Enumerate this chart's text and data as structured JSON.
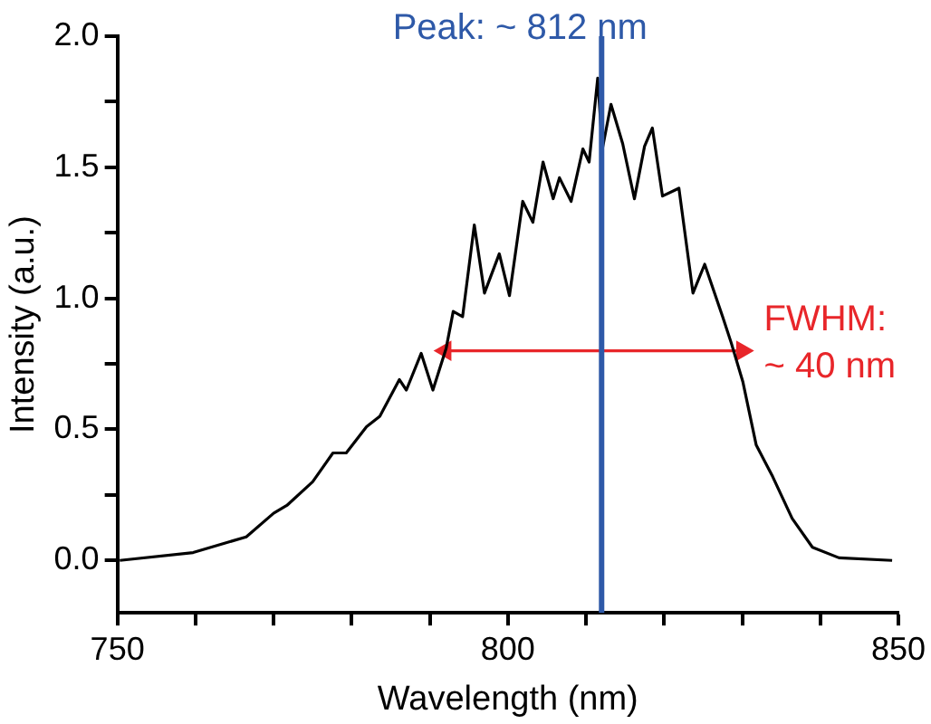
{
  "chart_data": {
    "type": "line",
    "xlabel": "Wavelength (nm)",
    "ylabel": "Intensity (a.u.)",
    "xlim": [
      750,
      850
    ],
    "xticks": [
      750,
      {
        "value": 760,
        "label": null
      },
      {
        "value": 770,
        "label": null
      },
      {
        "value": 780,
        "label": null
      },
      {
        "value": 790,
        "label": null
      },
      800,
      {
        "value": 810,
        "label": null
      },
      {
        "value": 820,
        "label": null
      },
      {
        "value": 830,
        "label": null
      },
      {
        "value": 840,
        "label": null
      },
      850
    ],
    "ylim": [
      -0.2,
      2.0
    ],
    "yticks": [
      {
        "value": 0,
        "label": "0.0"
      },
      {
        "value": 0.25,
        "label": null
      },
      {
        "value": 0.5,
        "label": "0.5"
      },
      {
        "value": 0.75,
        "label": null
      },
      {
        "value": 1,
        "label": "1.0"
      },
      {
        "value": 1.25,
        "label": null
      },
      {
        "value": 1.5,
        "label": "1.5"
      },
      {
        "value": 1.75,
        "label": null
      },
      {
        "value": 2,
        "label": "2.0"
      }
    ],
    "grid": false,
    "legend": false,
    "marker": "none",
    "line_style": "solid",
    "series": [
      {
        "color": "#000000",
        "x": [
          750.3,
          759.7,
          766.5,
          770,
          771.7,
          775,
          777.6,
          779.3,
          781.9,
          783.6,
          786.1,
          787,
          788.9,
          790.4,
          792.1,
          793,
          794.2,
          795.7,
          797,
          798.9,
          800.2,
          801.9,
          803.2,
          804.5,
          805.8,
          806.6,
          808.1,
          809.6,
          810.4,
          811.5,
          812.1,
          813.2,
          814.7,
          816.2,
          817.5,
          818.5,
          819.8,
          821.9,
          823.7,
          825.2,
          827.5,
          828.6,
          830.1,
          831.8,
          833.9,
          836.4,
          839,
          842.4,
          849.2
        ],
        "values": [
          0.0,
          0.03,
          0.09,
          0.18,
          0.21,
          0.3,
          0.41,
          0.41,
          0.51,
          0.55,
          0.69,
          0.65,
          0.79,
          0.65,
          0.81,
          0.95,
          0.93,
          1.28,
          1.02,
          1.17,
          1.01,
          1.37,
          1.29,
          1.52,
          1.38,
          1.46,
          1.37,
          1.57,
          1.52,
          1.84,
          1.57,
          1.74,
          1.59,
          1.38,
          1.58,
          1.65,
          1.39,
          1.42,
          1.02,
          1.13,
          0.93,
          0.83,
          0.68,
          0.44,
          0.32,
          0.16,
          0.05,
          0.01,
          0.0
        ]
      },
      {
        "color": "#e8262a",
        "marker": "triangle",
        "x": [
          792,
          830
        ],
        "values": [
          0.8,
          0.8
        ]
      }
    ],
    "ref_lines": [
      {
        "axis": "x",
        "value": 812,
        "label": "Peak: ~ 812 nm",
        "color": "#2e59a8"
      }
    ],
    "annotations": [
      {
        "text": "FWHM:\n~ 40 nm",
        "x": 830,
        "y": 0.8
      }
    ]
  }
}
